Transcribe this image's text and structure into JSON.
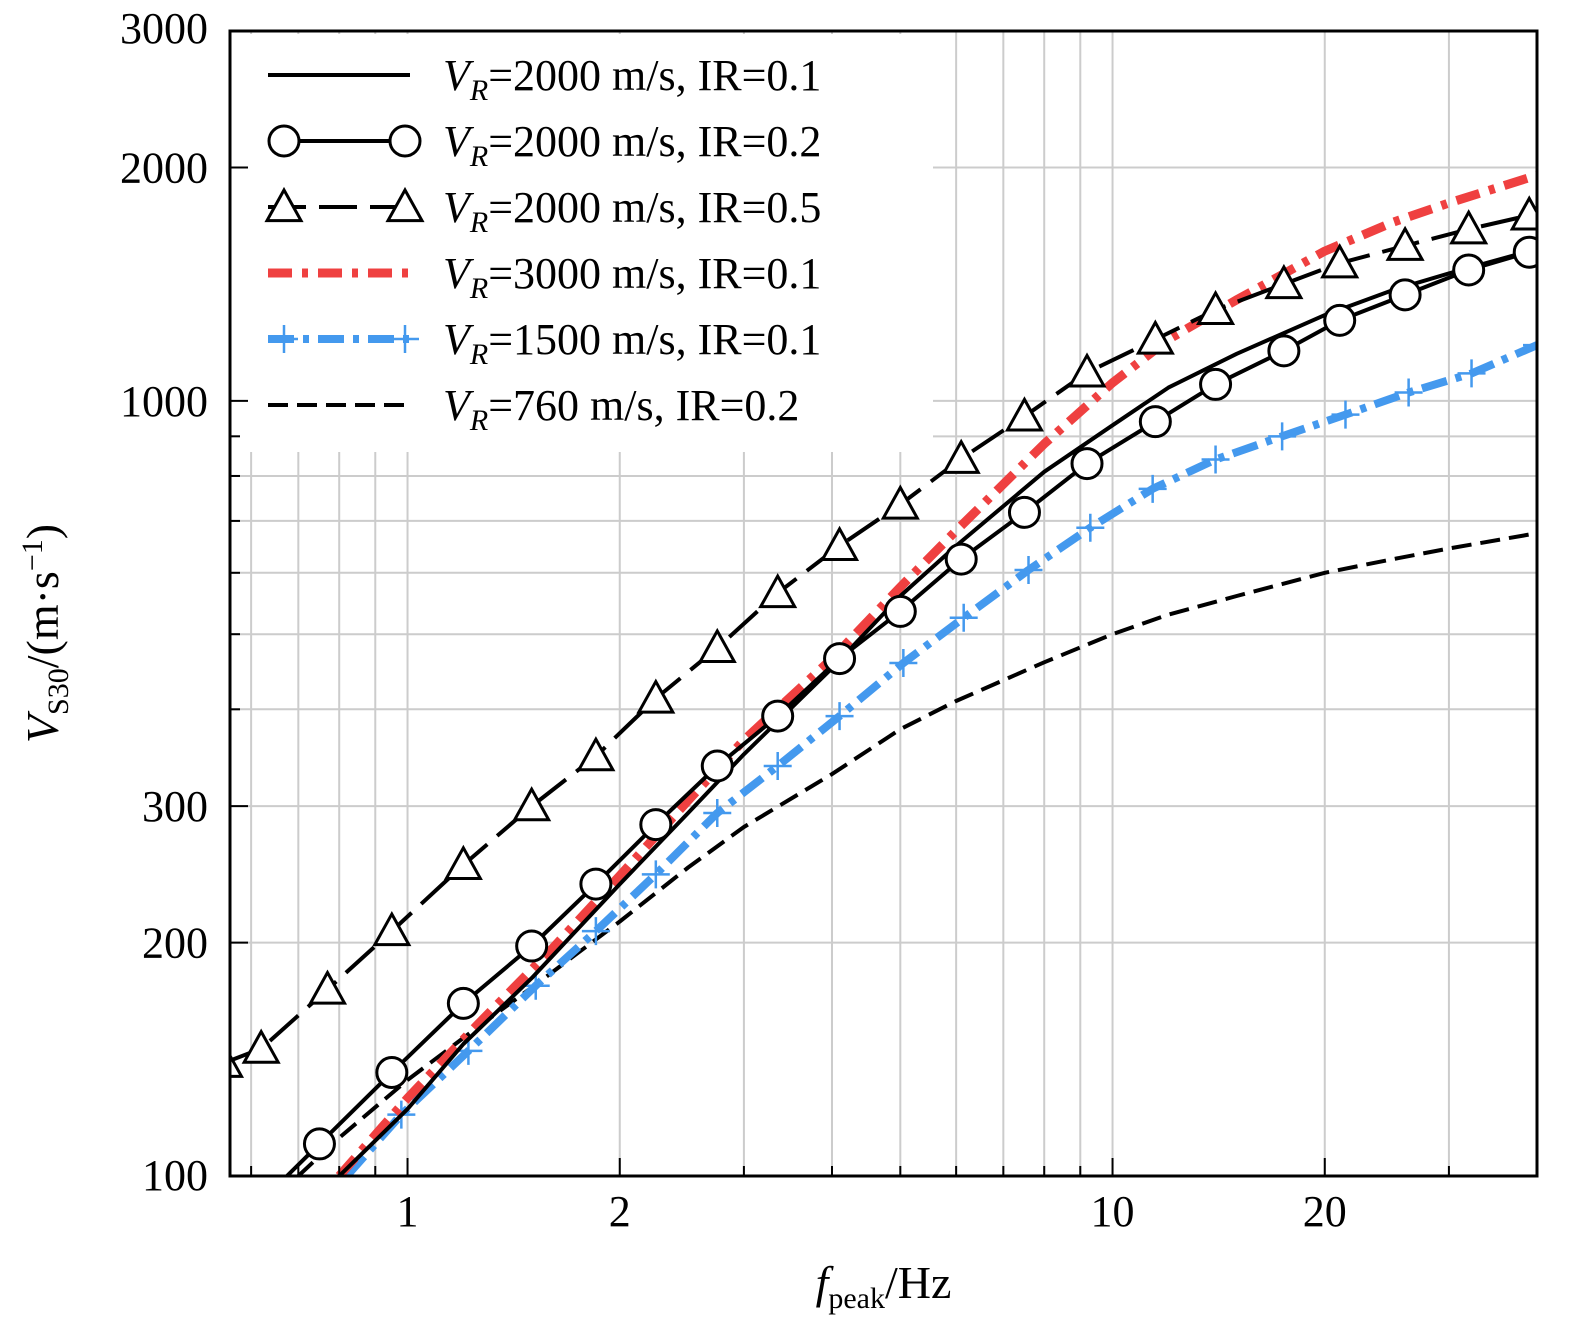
{
  "chart_data": {
    "type": "line",
    "title": "",
    "xlabel": {
      "main": "f",
      "sub": "peak",
      "unit": "/Hz"
    },
    "ylabel": {
      "main": "V",
      "sub": "S30",
      "unit_pre": "/(m·s",
      "unit_sup": "−1",
      "unit_post": ")"
    },
    "xscale": "log",
    "yscale": "log",
    "xlim": [
      0.56,
      40
    ],
    "ylim": [
      100,
      3000
    ],
    "grid": true,
    "legend_position": "top-left",
    "xticks": [
      {
        "value": 1,
        "label": "1"
      },
      {
        "value": 2,
        "label": "2"
      },
      {
        "value": 10,
        "label": "10"
      },
      {
        "value": 20,
        "label": "20"
      }
    ],
    "yticks": [
      {
        "value": 100,
        "label": "100"
      },
      {
        "value": 200,
        "label": "200"
      },
      {
        "value": 300,
        "label": "300"
      },
      {
        "value": 1000,
        "label": "1000"
      },
      {
        "value": 2000,
        "label": "2000"
      },
      {
        "value": 3000,
        "label": "3000"
      }
    ],
    "series": [
      {
        "name_main": "V",
        "name_sub": "R",
        "name_rest": "=2000 m/s, IR=0.1",
        "color": "#000000",
        "dash": "solid",
        "marker": "none",
        "x": [
          0.8,
          1.0,
          1.2,
          1.5,
          2.0,
          2.5,
          3.0,
          4.0,
          5.0,
          6.0,
          8.0,
          10.0,
          12.0,
          15.0,
          20.0,
          25.0,
          30.0,
          40.0
        ],
        "y": [
          100,
          122,
          148,
          180,
          238,
          294,
          350,
          452,
          560,
          650,
          810,
          930,
          1040,
          1150,
          1290,
          1390,
          1460,
          1570
        ]
      },
      {
        "name_main": "V",
        "name_sub": "R",
        "name_rest": "=2000 m/s, IR=0.2",
        "color": "#000000",
        "dash": "solid",
        "marker": "circle",
        "x": [
          0.6,
          0.75,
          0.95,
          1.2,
          1.5,
          1.85,
          2.25,
          2.75,
          3.35,
          4.1,
          5.0,
          6.1,
          7.5,
          9.2,
          11.5,
          14.0,
          17.5,
          21.0,
          26.0,
          32.0,
          39.0
        ],
        "y": [
          90,
          110,
          136,
          167,
          198,
          238,
          284,
          338,
          392,
          465,
          535,
          625,
          718,
          830,
          940,
          1050,
          1160,
          1270,
          1370,
          1475,
          1555
        ]
      },
      {
        "name_main": "V",
        "name_sub": "R",
        "name_rest": "=2000 m/s, IR=0.5",
        "color": "#000000",
        "dash": "longdash",
        "marker": "triangle",
        "x": [
          0.55,
          0.62,
          0.77,
          0.95,
          1.2,
          1.5,
          1.85,
          2.25,
          2.75,
          3.35,
          4.1,
          5.0,
          6.1,
          7.5,
          9.2,
          11.5,
          14.0,
          17.5,
          21.0,
          26.0,
          32.0,
          39.0
        ],
        "y": [
          140,
          146,
          174,
          207,
          252,
          300,
          348,
          413,
          480,
          565,
          650,
          735,
          842,
          955,
          1088,
          1200,
          1310,
          1415,
          1505,
          1585,
          1665,
          1735
        ]
      },
      {
        "name_main": "V",
        "name_sub": "R",
        "name_rest": "=3000 m/s, IR=0.1",
        "color": "#ef4040",
        "dash": "dashdot-thick",
        "marker": "none",
        "x": [
          0.8,
          1.0,
          1.25,
          1.6,
          2.0,
          2.5,
          3.0,
          4.0,
          5.0,
          6.0,
          8.0,
          10.0,
          12.0,
          15.0,
          20.0,
          25.0,
          30.0,
          40.0
        ],
        "y": [
          100,
          126,
          156,
          196,
          244,
          305,
          365,
          465,
          575,
          680,
          880,
          1055,
          1200,
          1350,
          1560,
          1700,
          1800,
          1955
        ]
      },
      {
        "name_main": "V",
        "name_sub": "R",
        "name_rest": "=1500 m/s, IR=0.1",
        "color": "#4499ee",
        "dash": "dashdot",
        "marker": "plus",
        "x": [
          0.82,
          0.98,
          1.22,
          1.52,
          1.85,
          2.25,
          2.75,
          3.35,
          4.1,
          5.05,
          6.15,
          7.6,
          9.3,
          11.4,
          14.0,
          17.4,
          21.4,
          26.3,
          32.3,
          40.0
        ],
        "y": [
          100,
          120,
          145,
          176,
          207,
          245,
          294,
          338,
          392,
          459,
          525,
          605,
          686,
          770,
          840,
          900,
          960,
          1025,
          1085,
          1180
        ]
      },
      {
        "name_main": "V",
        "name_sub": "R",
        "name_rest": "=760 m/s,   IR=0.2",
        "color": "#000000",
        "dash": "dashed",
        "marker": "none",
        "x": [
          0.7,
          0.8,
          1.0,
          1.25,
          1.5,
          2.0,
          2.5,
          3.0,
          4.0,
          5.0,
          6.0,
          8.0,
          10.0,
          12.0,
          15.0,
          20.0,
          25.0,
          30.0,
          40.0
        ],
        "y": [
          100,
          112,
          133,
          155,
          175,
          213,
          250,
          282,
          330,
          377,
          410,
          460,
          500,
          530,
          560,
          600,
          625,
          645,
          675
        ]
      }
    ]
  }
}
